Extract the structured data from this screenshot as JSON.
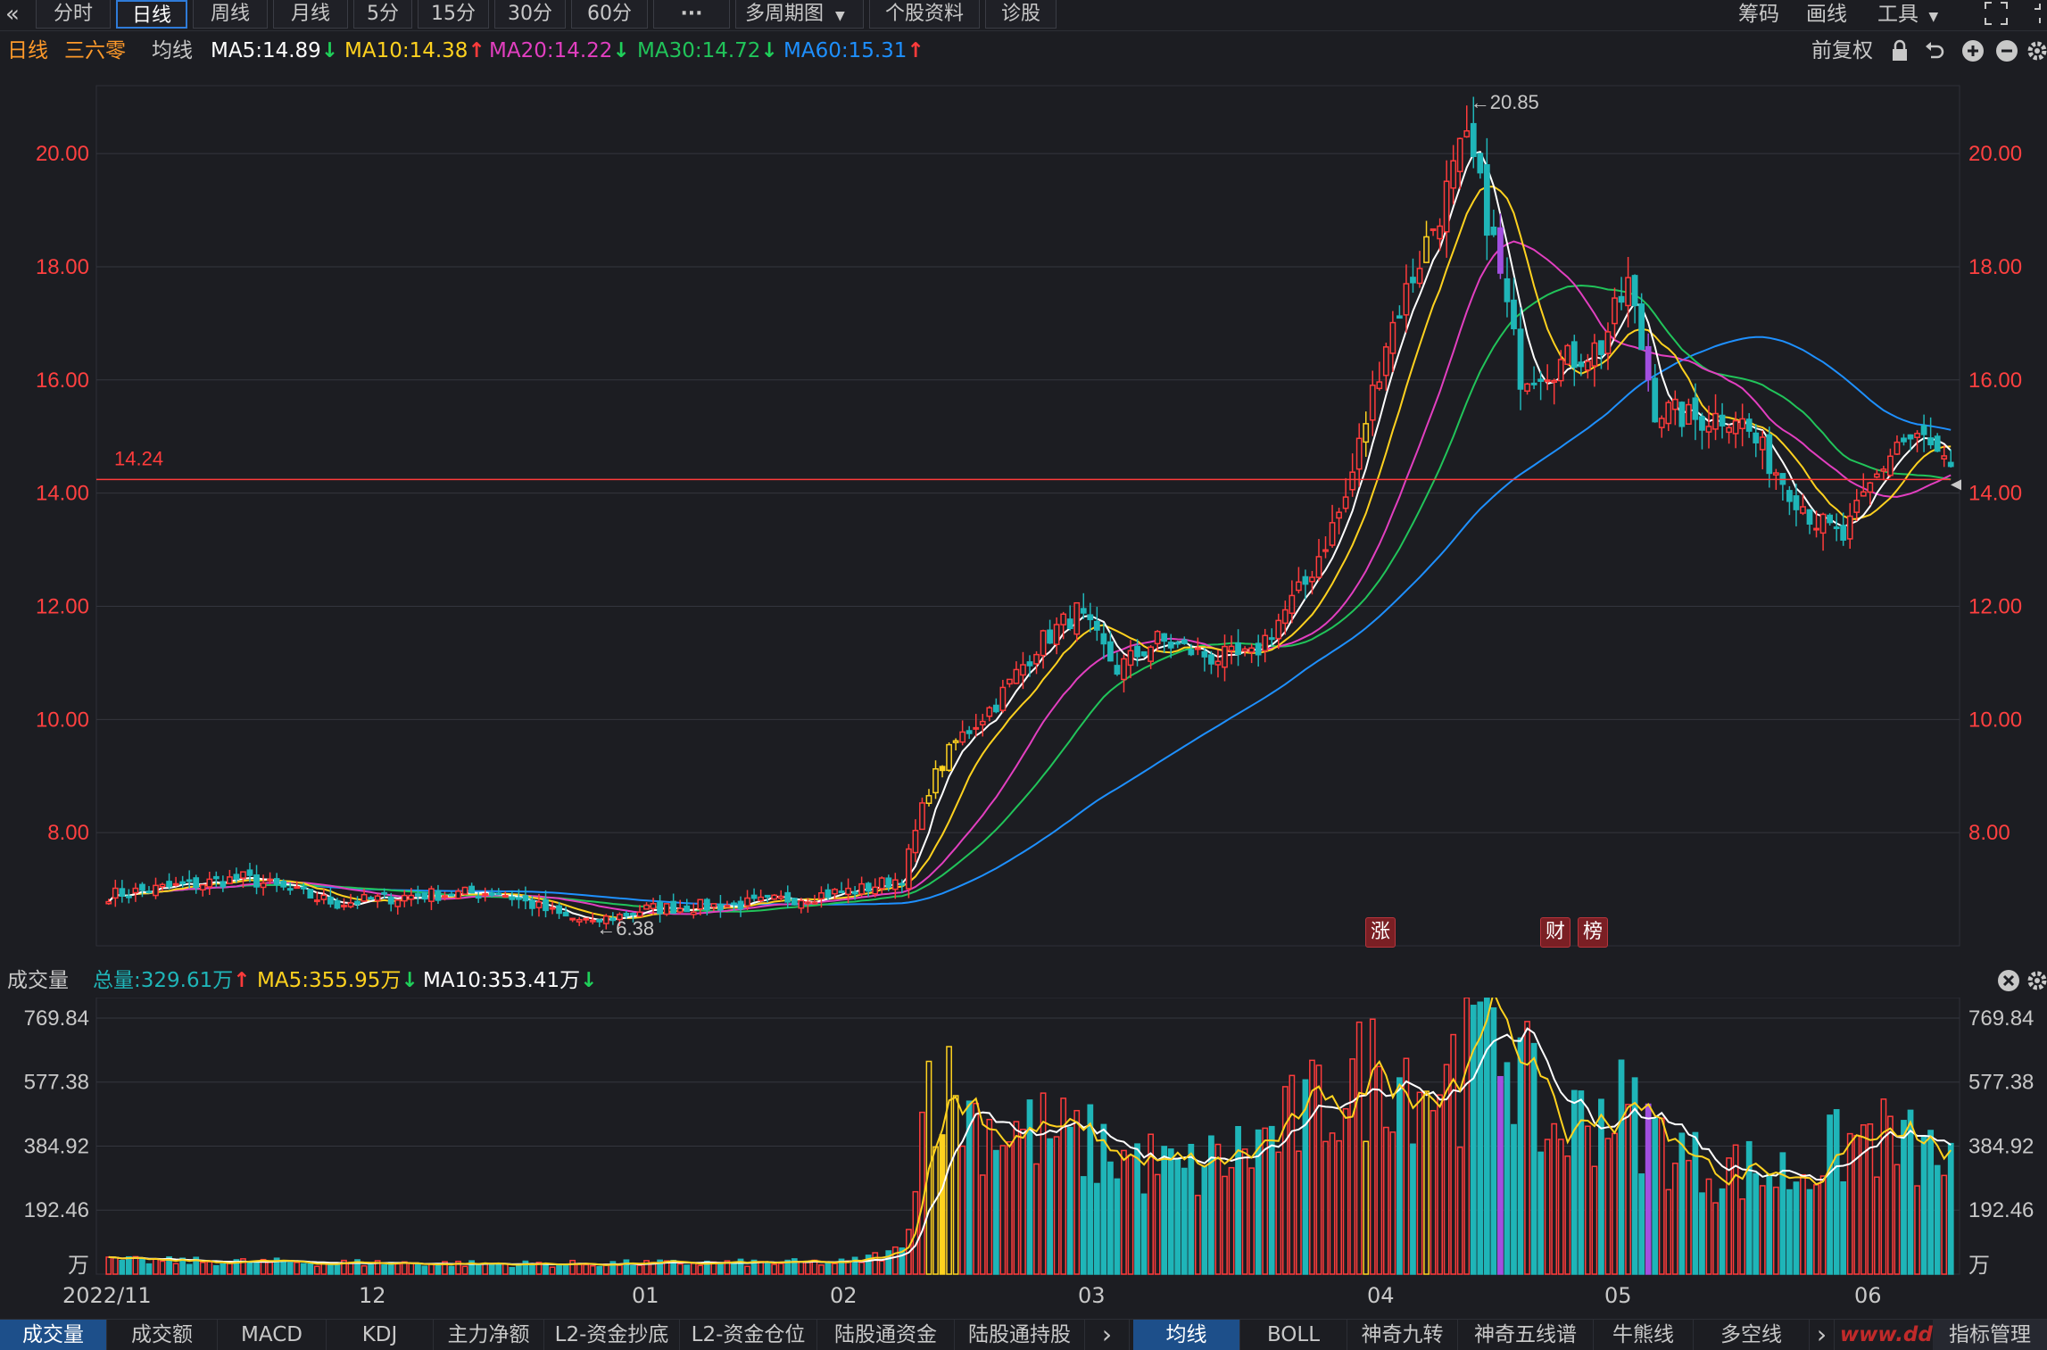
{
  "toolbar": {
    "back_icon": "«",
    "periods": [
      "分时",
      "日线",
      "周线",
      "月线",
      "5分",
      "15分",
      "30分",
      "60分",
      "···"
    ],
    "active_period": "日线",
    "multi_period": "多周期图",
    "stock_info": "个股资料",
    "diagnose": "诊股",
    "right": {
      "chips": "筹码",
      "draw": "画线",
      "tools": "工具"
    }
  },
  "legend": {
    "period": "日线",
    "stock_name": "三六零",
    "ma_label": "均线",
    "ma5": "MA5:14.89",
    "ma10": "MA10:14.38",
    "ma20": "MA20:14.22",
    "ma30": "MA30:14.72",
    "ma60": "MA60:15.31",
    "adjust": "前复权"
  },
  "volume_legend": {
    "title": "成交量",
    "total": "总量:329.61万",
    "ma5": "MA5:355.95万",
    "ma10": "MA10:353.41万"
  },
  "bottom_tabs_left": [
    "成交量",
    "成交额",
    "MACD",
    "KDJ",
    "主力净额",
    "L2-资金抄底",
    "L2-资金仓位",
    "陆股通资金",
    "陆股通持股"
  ],
  "bottom_tabs_right": [
    "均线",
    "BOLL",
    "神奇九转",
    "神奇五线谱",
    "牛熊线",
    "多空线"
  ],
  "bottom_tabs_more": "›",
  "indicator_manage": "指标管理",
  "watermark": "www.dd...",
  "colors": {
    "up": "#ff3b3b",
    "down": "#1fb5b8",
    "purple": "#a24fe0",
    "ma5": "#ffffff",
    "ma10": "#ffd21f",
    "ma20": "#e23fc0",
    "ma30": "#21c45a",
    "ma60": "#1e90ff",
    "active_blue": "#2f7bd8"
  },
  "badges": [
    "涨",
    "财",
    "榜"
  ],
  "chart_data": [
    {
      "type": "candlestick",
      "title": "",
      "price_axis_ticks": [
        "20.00",
        "18.00",
        "16.00",
        "14.00",
        "12.00",
        "10.00",
        "8.00"
      ],
      "ylim": [
        6.0,
        21.2
      ],
      "date_ticks": [
        "2022/11",
        "12",
        "01",
        "02",
        "03",
        "04",
        "05",
        "06"
      ],
      "reference_line": {
        "value": 14.24,
        "label": "14.24"
      },
      "annotations": [
        {
          "label": "←20.85",
          "value": 20.85
        },
        {
          "label": "←6.38",
          "value": 6.38
        }
      ],
      "anchors": [
        {
          "i": 0,
          "p": 6.9
        },
        {
          "i": 20,
          "p": 7.2
        },
        {
          "i": 34,
          "p": 6.75
        },
        {
          "i": 46,
          "p": 6.9
        },
        {
          "i": 58,
          "p": 6.95
        },
        {
          "i": 68,
          "p": 6.5
        },
        {
          "i": 72,
          "p": 6.42
        },
        {
          "i": 80,
          "p": 6.65
        },
        {
          "i": 96,
          "p": 6.75
        },
        {
          "i": 112,
          "p": 7.0
        },
        {
          "i": 118,
          "p": 7.2
        },
        {
          "i": 122,
          "p": 8.8
        },
        {
          "i": 126,
          "p": 9.6
        },
        {
          "i": 132,
          "p": 10.3
        },
        {
          "i": 138,
          "p": 11.3
        },
        {
          "i": 144,
          "p": 11.9
        },
        {
          "i": 150,
          "p": 10.9
        },
        {
          "i": 156,
          "p": 11.4
        },
        {
          "i": 164,
          "p": 11.1
        },
        {
          "i": 170,
          "p": 11.1
        },
        {
          "i": 178,
          "p": 12.4
        },
        {
          "i": 184,
          "p": 13.9
        },
        {
          "i": 190,
          "p": 16.7
        },
        {
          "i": 198,
          "p": 19.0
        },
        {
          "i": 202,
          "p": 20.3
        },
        {
          "i": 206,
          "p": 18.4
        },
        {
          "i": 210,
          "p": 16.1
        },
        {
          "i": 216,
          "p": 16.3
        },
        {
          "i": 222,
          "p": 16.6
        },
        {
          "i": 226,
          "p": 17.7
        },
        {
          "i": 230,
          "p": 15.5
        },
        {
          "i": 236,
          "p": 15.3
        },
        {
          "i": 242,
          "p": 15.4
        },
        {
          "i": 248,
          "p": 14.4
        },
        {
          "i": 254,
          "p": 13.5
        },
        {
          "i": 258,
          "p": 13.2
        },
        {
          "i": 262,
          "p": 14.1
        },
        {
          "i": 266,
          "p": 14.9
        },
        {
          "i": 270,
          "p": 14.95
        },
        {
          "i": 274,
          "p": 14.3
        }
      ],
      "series_names": [
        "MA5",
        "MA10",
        "MA20",
        "MA30",
        "MA60"
      ]
    },
    {
      "type": "bar",
      "title": "",
      "unit": "万",
      "volume_axis_ticks": [
        "769.84",
        "577.38",
        "384.92",
        "192.46"
      ],
      "ylim": [
        0,
        810
      ],
      "anchors": [
        {
          "i": 0,
          "v": 40
        },
        {
          "i": 60,
          "v": 30
        },
        {
          "i": 110,
          "v": 35
        },
        {
          "i": 118,
          "v": 70
        },
        {
          "i": 122,
          "v": 600
        },
        {
          "i": 130,
          "v": 450
        },
        {
          "i": 140,
          "v": 420
        },
        {
          "i": 160,
          "v": 300
        },
        {
          "i": 170,
          "v": 380
        },
        {
          "i": 180,
          "v": 500
        },
        {
          "i": 190,
          "v": 640
        },
        {
          "i": 200,
          "v": 540
        },
        {
          "i": 206,
          "v": 800
        },
        {
          "i": 214,
          "v": 420
        },
        {
          "i": 224,
          "v": 510
        },
        {
          "i": 236,
          "v": 330
        },
        {
          "i": 250,
          "v": 300
        },
        {
          "i": 262,
          "v": 420
        },
        {
          "i": 274,
          "v": 330
        }
      ]
    }
  ]
}
